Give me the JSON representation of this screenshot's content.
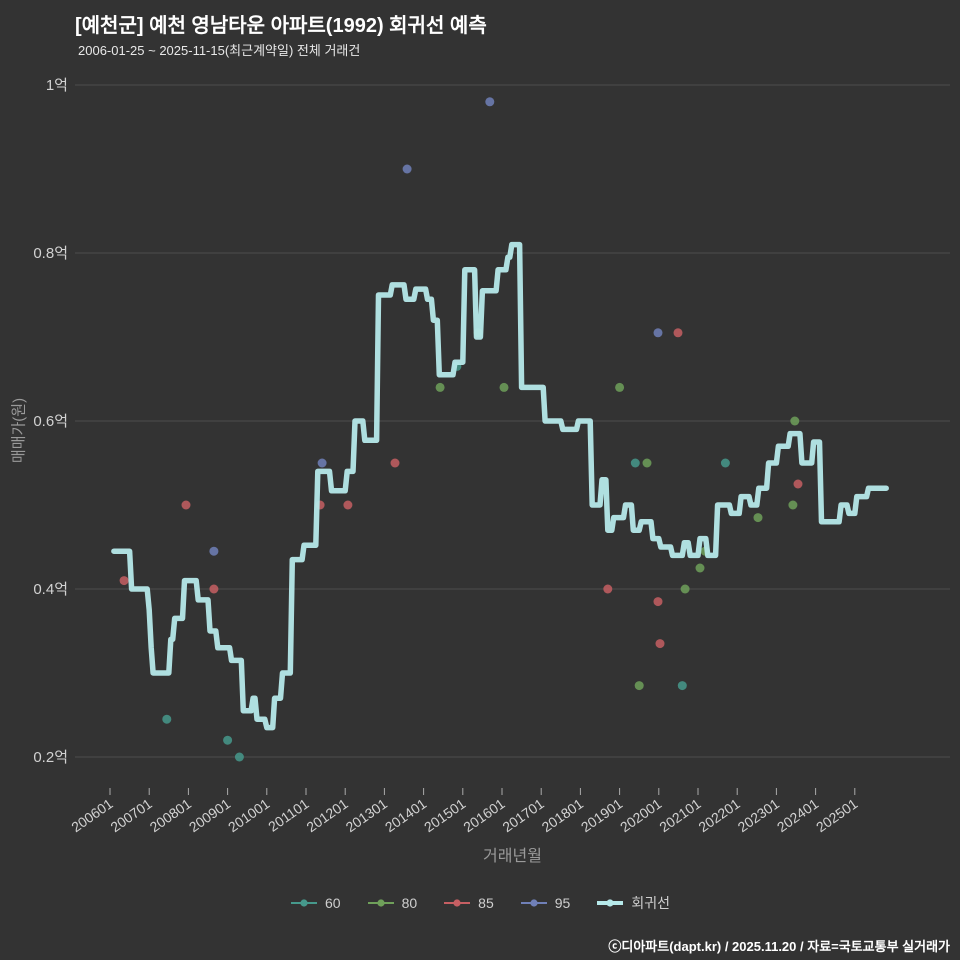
{
  "header": {
    "title": "[예천군] 예천 영남타운 아파트(1992) 회귀선 예측",
    "subtitle": "2006-01-25 ~ 2025-11-15(최근계약일) 전체 거래건"
  },
  "footer": {
    "credit": "ⓒ디아파트(dapt.kr) / 2025.11.20 / 자료=국토교통부 실거래가"
  },
  "colors": {
    "background": "#333333",
    "grid": "#4e4e4e",
    "tick_text": "#d2d2d2",
    "tick_mark": "#aaaaaa",
    "axis_title": "#9a9a9a",
    "title_text": "#ffffff",
    "subtitle_text": "#e8e8e8",
    "footer_text": "#ffffff"
  },
  "chart_data": {
    "type": "scatter",
    "title": "[예천군] 예천 영남타운 아파트(1992) 회귀선 예측",
    "xlabel": "거래년월",
    "ylabel": "매매가(원)",
    "ylim": [
      0.16,
      1.03
    ],
    "grid": "horizontal",
    "legend_position": "bottom",
    "yticks": [
      {
        "value": 1.0,
        "label": "1억"
      },
      {
        "value": 0.8,
        "label": "0.8억"
      },
      {
        "value": 0.6,
        "label": "0.6억"
      },
      {
        "value": 0.4,
        "label": "0.4억"
      },
      {
        "value": 0.2,
        "label": "0.2억"
      }
    ],
    "xtick_labels": [
      "200601",
      "200701",
      "200801",
      "200901",
      "201001",
      "201101",
      "201201",
      "201301",
      "201401",
      "201501",
      "201601",
      "201701",
      "201801",
      "201901",
      "202001",
      "202101",
      "202201",
      "202301",
      "202401",
      "202501"
    ],
    "series": [
      {
        "name": "60",
        "type": "scatter",
        "color": "#46998c",
        "points": [
          [
            2007.45,
            0.245
          ],
          [
            2009.0,
            0.22
          ],
          [
            2009.3,
            0.2
          ],
          [
            2014.85,
            0.665
          ],
          [
            2019.4,
            0.55
          ],
          [
            2020.6,
            0.285
          ],
          [
            2021.7,
            0.55
          ]
        ]
      },
      {
        "name": "80",
        "type": "scatter",
        "color": "#6fa05a",
        "points": [
          [
            2014.42,
            0.64
          ],
          [
            2015.39,
            0.705
          ],
          [
            2016.05,
            0.64
          ],
          [
            2019.0,
            0.64
          ],
          [
            2019.5,
            0.285
          ],
          [
            2019.7,
            0.55
          ],
          [
            2020.67,
            0.4
          ],
          [
            2021.05,
            0.425
          ],
          [
            2021.18,
            0.445
          ],
          [
            2022.53,
            0.485
          ],
          [
            2023.42,
            0.5
          ],
          [
            2023.47,
            0.6
          ]
        ]
      },
      {
        "name": "85",
        "type": "scatter",
        "color": "#c65f63",
        "points": [
          [
            2006.36,
            0.41
          ],
          [
            2007.94,
            0.5
          ],
          [
            2008.65,
            0.4
          ],
          [
            2011.36,
            0.5
          ],
          [
            2012.07,
            0.5
          ],
          [
            2013.27,
            0.55
          ],
          [
            2018.7,
            0.4
          ],
          [
            2019.98,
            0.385
          ],
          [
            2020.03,
            0.335
          ],
          [
            2020.49,
            0.705
          ],
          [
            2023.55,
            0.525
          ]
        ]
      },
      {
        "name": "95",
        "type": "scatter",
        "color": "#7080b8",
        "points": [
          [
            2008.65,
            0.445
          ],
          [
            2011.41,
            0.55
          ],
          [
            2013.58,
            0.9
          ],
          [
            2015.69,
            0.98
          ],
          [
            2019.98,
            0.705
          ]
        ]
      },
      {
        "name": "회귀선",
        "type": "line",
        "color": "#b6e9ea",
        "points": [
          [
            2006.1,
            0.445
          ],
          [
            2006.5,
            0.445
          ],
          [
            2006.55,
            0.4
          ],
          [
            2006.95,
            0.4
          ],
          [
            2007.0,
            0.375
          ],
          [
            2007.05,
            0.33
          ],
          [
            2007.1,
            0.3
          ],
          [
            2007.5,
            0.3
          ],
          [
            2007.55,
            0.34
          ],
          [
            2007.6,
            0.34
          ],
          [
            2007.65,
            0.365
          ],
          [
            2007.85,
            0.365
          ],
          [
            2007.9,
            0.41
          ],
          [
            2008.2,
            0.41
          ],
          [
            2008.25,
            0.387
          ],
          [
            2008.5,
            0.387
          ],
          [
            2008.55,
            0.35
          ],
          [
            2008.7,
            0.35
          ],
          [
            2008.75,
            0.33
          ],
          [
            2009.05,
            0.33
          ],
          [
            2009.1,
            0.315
          ],
          [
            2009.35,
            0.315
          ],
          [
            2009.4,
            0.255
          ],
          [
            2009.6,
            0.255
          ],
          [
            2009.65,
            0.27
          ],
          [
            2009.7,
            0.27
          ],
          [
            2009.75,
            0.245
          ],
          [
            2009.95,
            0.245
          ],
          [
            2010.0,
            0.235
          ],
          [
            2010.15,
            0.235
          ],
          [
            2010.2,
            0.27
          ],
          [
            2010.35,
            0.27
          ],
          [
            2010.4,
            0.3
          ],
          [
            2010.6,
            0.3
          ],
          [
            2010.65,
            0.435
          ],
          [
            2010.9,
            0.435
          ],
          [
            2010.95,
            0.452
          ],
          [
            2011.25,
            0.452
          ],
          [
            2011.3,
            0.54
          ],
          [
            2011.6,
            0.54
          ],
          [
            2011.65,
            0.517
          ],
          [
            2012.0,
            0.517
          ],
          [
            2012.05,
            0.54
          ],
          [
            2012.2,
            0.54
          ],
          [
            2012.25,
            0.6
          ],
          [
            2012.45,
            0.6
          ],
          [
            2012.5,
            0.577
          ],
          [
            2012.8,
            0.577
          ],
          [
            2012.85,
            0.75
          ],
          [
            2013.15,
            0.75
          ],
          [
            2013.2,
            0.762
          ],
          [
            2013.5,
            0.762
          ],
          [
            2013.55,
            0.745
          ],
          [
            2013.75,
            0.745
          ],
          [
            2013.8,
            0.757
          ],
          [
            2014.05,
            0.757
          ],
          [
            2014.1,
            0.745
          ],
          [
            2014.2,
            0.745
          ],
          [
            2014.25,
            0.72
          ],
          [
            2014.35,
            0.72
          ],
          [
            2014.4,
            0.655
          ],
          [
            2014.75,
            0.655
          ],
          [
            2014.8,
            0.67
          ],
          [
            2015.0,
            0.67
          ],
          [
            2015.05,
            0.78
          ],
          [
            2015.3,
            0.78
          ],
          [
            2015.35,
            0.7
          ],
          [
            2015.45,
            0.7
          ],
          [
            2015.5,
            0.755
          ],
          [
            2015.85,
            0.755
          ],
          [
            2015.9,
            0.78
          ],
          [
            2016.1,
            0.78
          ],
          [
            2016.15,
            0.795
          ],
          [
            2016.2,
            0.795
          ],
          [
            2016.25,
            0.81
          ],
          [
            2016.45,
            0.81
          ],
          [
            2016.5,
            0.64
          ],
          [
            2017.05,
            0.64
          ],
          [
            2017.1,
            0.6
          ],
          [
            2017.5,
            0.6
          ],
          [
            2017.55,
            0.59
          ],
          [
            2017.9,
            0.59
          ],
          [
            2017.95,
            0.6
          ],
          [
            2018.25,
            0.6
          ],
          [
            2018.3,
            0.5
          ],
          [
            2018.5,
            0.5
          ],
          [
            2018.55,
            0.53
          ],
          [
            2018.65,
            0.53
          ],
          [
            2018.7,
            0.47
          ],
          [
            2018.8,
            0.47
          ],
          [
            2018.85,
            0.485
          ],
          [
            2019.1,
            0.485
          ],
          [
            2019.15,
            0.5
          ],
          [
            2019.3,
            0.5
          ],
          [
            2019.35,
            0.47
          ],
          [
            2019.5,
            0.47
          ],
          [
            2019.55,
            0.48
          ],
          [
            2019.8,
            0.48
          ],
          [
            2019.85,
            0.46
          ],
          [
            2020.0,
            0.46
          ],
          [
            2020.05,
            0.45
          ],
          [
            2020.3,
            0.45
          ],
          [
            2020.35,
            0.44
          ],
          [
            2020.6,
            0.44
          ],
          [
            2020.65,
            0.455
          ],
          [
            2020.75,
            0.455
          ],
          [
            2020.8,
            0.44
          ],
          [
            2021.0,
            0.44
          ],
          [
            2021.05,
            0.46
          ],
          [
            2021.2,
            0.46
          ],
          [
            2021.25,
            0.44
          ],
          [
            2021.45,
            0.44
          ],
          [
            2021.5,
            0.5
          ],
          [
            2021.8,
            0.5
          ],
          [
            2021.85,
            0.49
          ],
          [
            2022.05,
            0.49
          ],
          [
            2022.1,
            0.51
          ],
          [
            2022.3,
            0.51
          ],
          [
            2022.35,
            0.5
          ],
          [
            2022.5,
            0.5
          ],
          [
            2022.55,
            0.52
          ],
          [
            2022.75,
            0.52
          ],
          [
            2022.8,
            0.55
          ],
          [
            2023.0,
            0.55
          ],
          [
            2023.05,
            0.57
          ],
          [
            2023.3,
            0.57
          ],
          [
            2023.35,
            0.585
          ],
          [
            2023.6,
            0.585
          ],
          [
            2023.65,
            0.55
          ],
          [
            2023.9,
            0.55
          ],
          [
            2023.95,
            0.575
          ],
          [
            2024.1,
            0.575
          ],
          [
            2024.15,
            0.48
          ],
          [
            2024.6,
            0.48
          ],
          [
            2024.65,
            0.5
          ],
          [
            2024.8,
            0.5
          ],
          [
            2024.85,
            0.49
          ],
          [
            2025.0,
            0.49
          ],
          [
            2025.05,
            0.51
          ],
          [
            2025.3,
            0.51
          ],
          [
            2025.35,
            0.52
          ],
          [
            2025.8,
            0.52
          ]
        ]
      }
    ]
  }
}
